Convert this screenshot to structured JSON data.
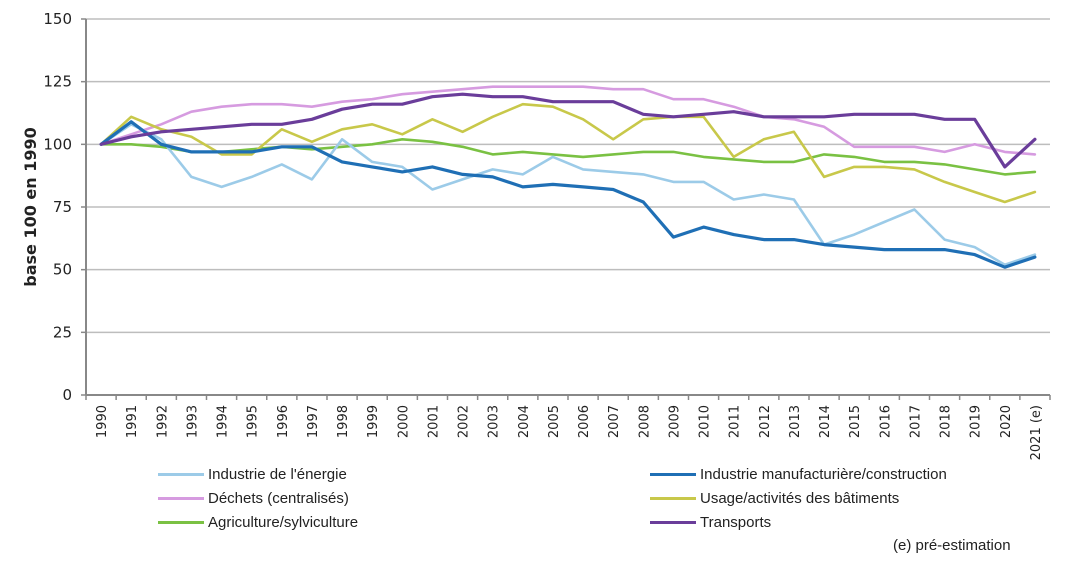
{
  "chart_data": {
    "type": "line",
    "title": "",
    "xlabel": "",
    "ylabel": "base 100 en 1990",
    "ylim": [
      0,
      150
    ],
    "yticks": [
      0,
      25,
      50,
      75,
      100,
      125,
      150
    ],
    "grid": true,
    "legend_placement": "bottom",
    "categories": [
      "1990",
      "1991",
      "1992",
      "1993",
      "1994",
      "1995",
      "1996",
      "1997",
      "1998",
      "1999",
      "2000",
      "2001",
      "2002",
      "2003",
      "2004",
      "2005",
      "2006",
      "2007",
      "2008",
      "2009",
      "2010",
      "2011",
      "2012",
      "2013",
      "2014",
      "2015",
      "2016",
      "2017",
      "2018",
      "2019",
      "2020",
      "2021 (e)"
    ],
    "series": [
      {
        "name": "Industrie de l'énergie",
        "color": "#9ccbe8",
        "values": [
          100,
          108,
          102,
          87,
          83,
          87,
          92,
          86,
          102,
          93,
          91,
          82,
          86,
          90,
          88,
          95,
          90,
          89,
          88,
          85,
          85,
          78,
          80,
          78,
          60,
          64,
          69,
          74,
          62,
          59,
          52,
          56
        ]
      },
      {
        "name": "Industrie manufacturière/construction",
        "color": "#1f6fb5",
        "values": [
          100,
          109,
          100,
          97,
          97,
          97,
          99,
          99,
          93,
          91,
          89,
          91,
          88,
          87,
          83,
          84,
          83,
          82,
          77,
          63,
          67,
          64,
          62,
          62,
          60,
          59,
          58,
          58,
          58,
          56,
          51,
          55
        ]
      },
      {
        "name": "Déchets (centralisés)",
        "color": "#d69be0",
        "values": [
          100,
          104,
          108,
          113,
          115,
          116,
          116,
          115,
          117,
          118,
          120,
          121,
          122,
          123,
          123,
          123,
          123,
          122,
          122,
          118,
          118,
          115,
          111,
          110,
          107,
          99,
          99,
          99,
          97,
          100,
          97,
          96
        ]
      },
      {
        "name": "Usage/activités des bâtiments",
        "color": "#c8c84a",
        "values": [
          100,
          111,
          106,
          103,
          96,
          96,
          106,
          101,
          106,
          108,
          104,
          110,
          105,
          111,
          116,
          115,
          110,
          102,
          110,
          111,
          111,
          95,
          102,
          105,
          87,
          91,
          91,
          90,
          85,
          81,
          77,
          81
        ]
      },
      {
        "name": "Agriculture/sylviculture",
        "color": "#7ac143",
        "values": [
          100,
          100,
          99,
          97,
          97,
          98,
          99,
          98,
          99,
          100,
          102,
          101,
          99,
          96,
          97,
          96,
          95,
          96,
          97,
          97,
          95,
          94,
          93,
          93,
          96,
          95,
          93,
          93,
          92,
          90,
          88,
          89
        ]
      },
      {
        "name": "Transports",
        "color": "#6a3d9a",
        "values": [
          100,
          103,
          105,
          106,
          107,
          108,
          108,
          110,
          114,
          116,
          116,
          119,
          120,
          119,
          119,
          117,
          117,
          117,
          112,
          111,
          112,
          113,
          111,
          111,
          111,
          112,
          112,
          112,
          110,
          110,
          91,
          102
        ]
      }
    ]
  },
  "legend": {
    "items": [
      {
        "label": "Industrie de l'énergie",
        "color": "#9ccbe8"
      },
      {
        "label": "Industrie manufacturière/construction",
        "color": "#1f6fb5"
      },
      {
        "label": "Déchets (centralisés)",
        "color": "#d69be0"
      },
      {
        "label": "Usage/activités des bâtiments",
        "color": "#c8c84a"
      },
      {
        "label": "Agriculture/sylviculture",
        "color": "#7ac143"
      },
      {
        "label": "Transports",
        "color": "#6a3d9a"
      }
    ]
  },
  "note": "(e) pré-estimation"
}
